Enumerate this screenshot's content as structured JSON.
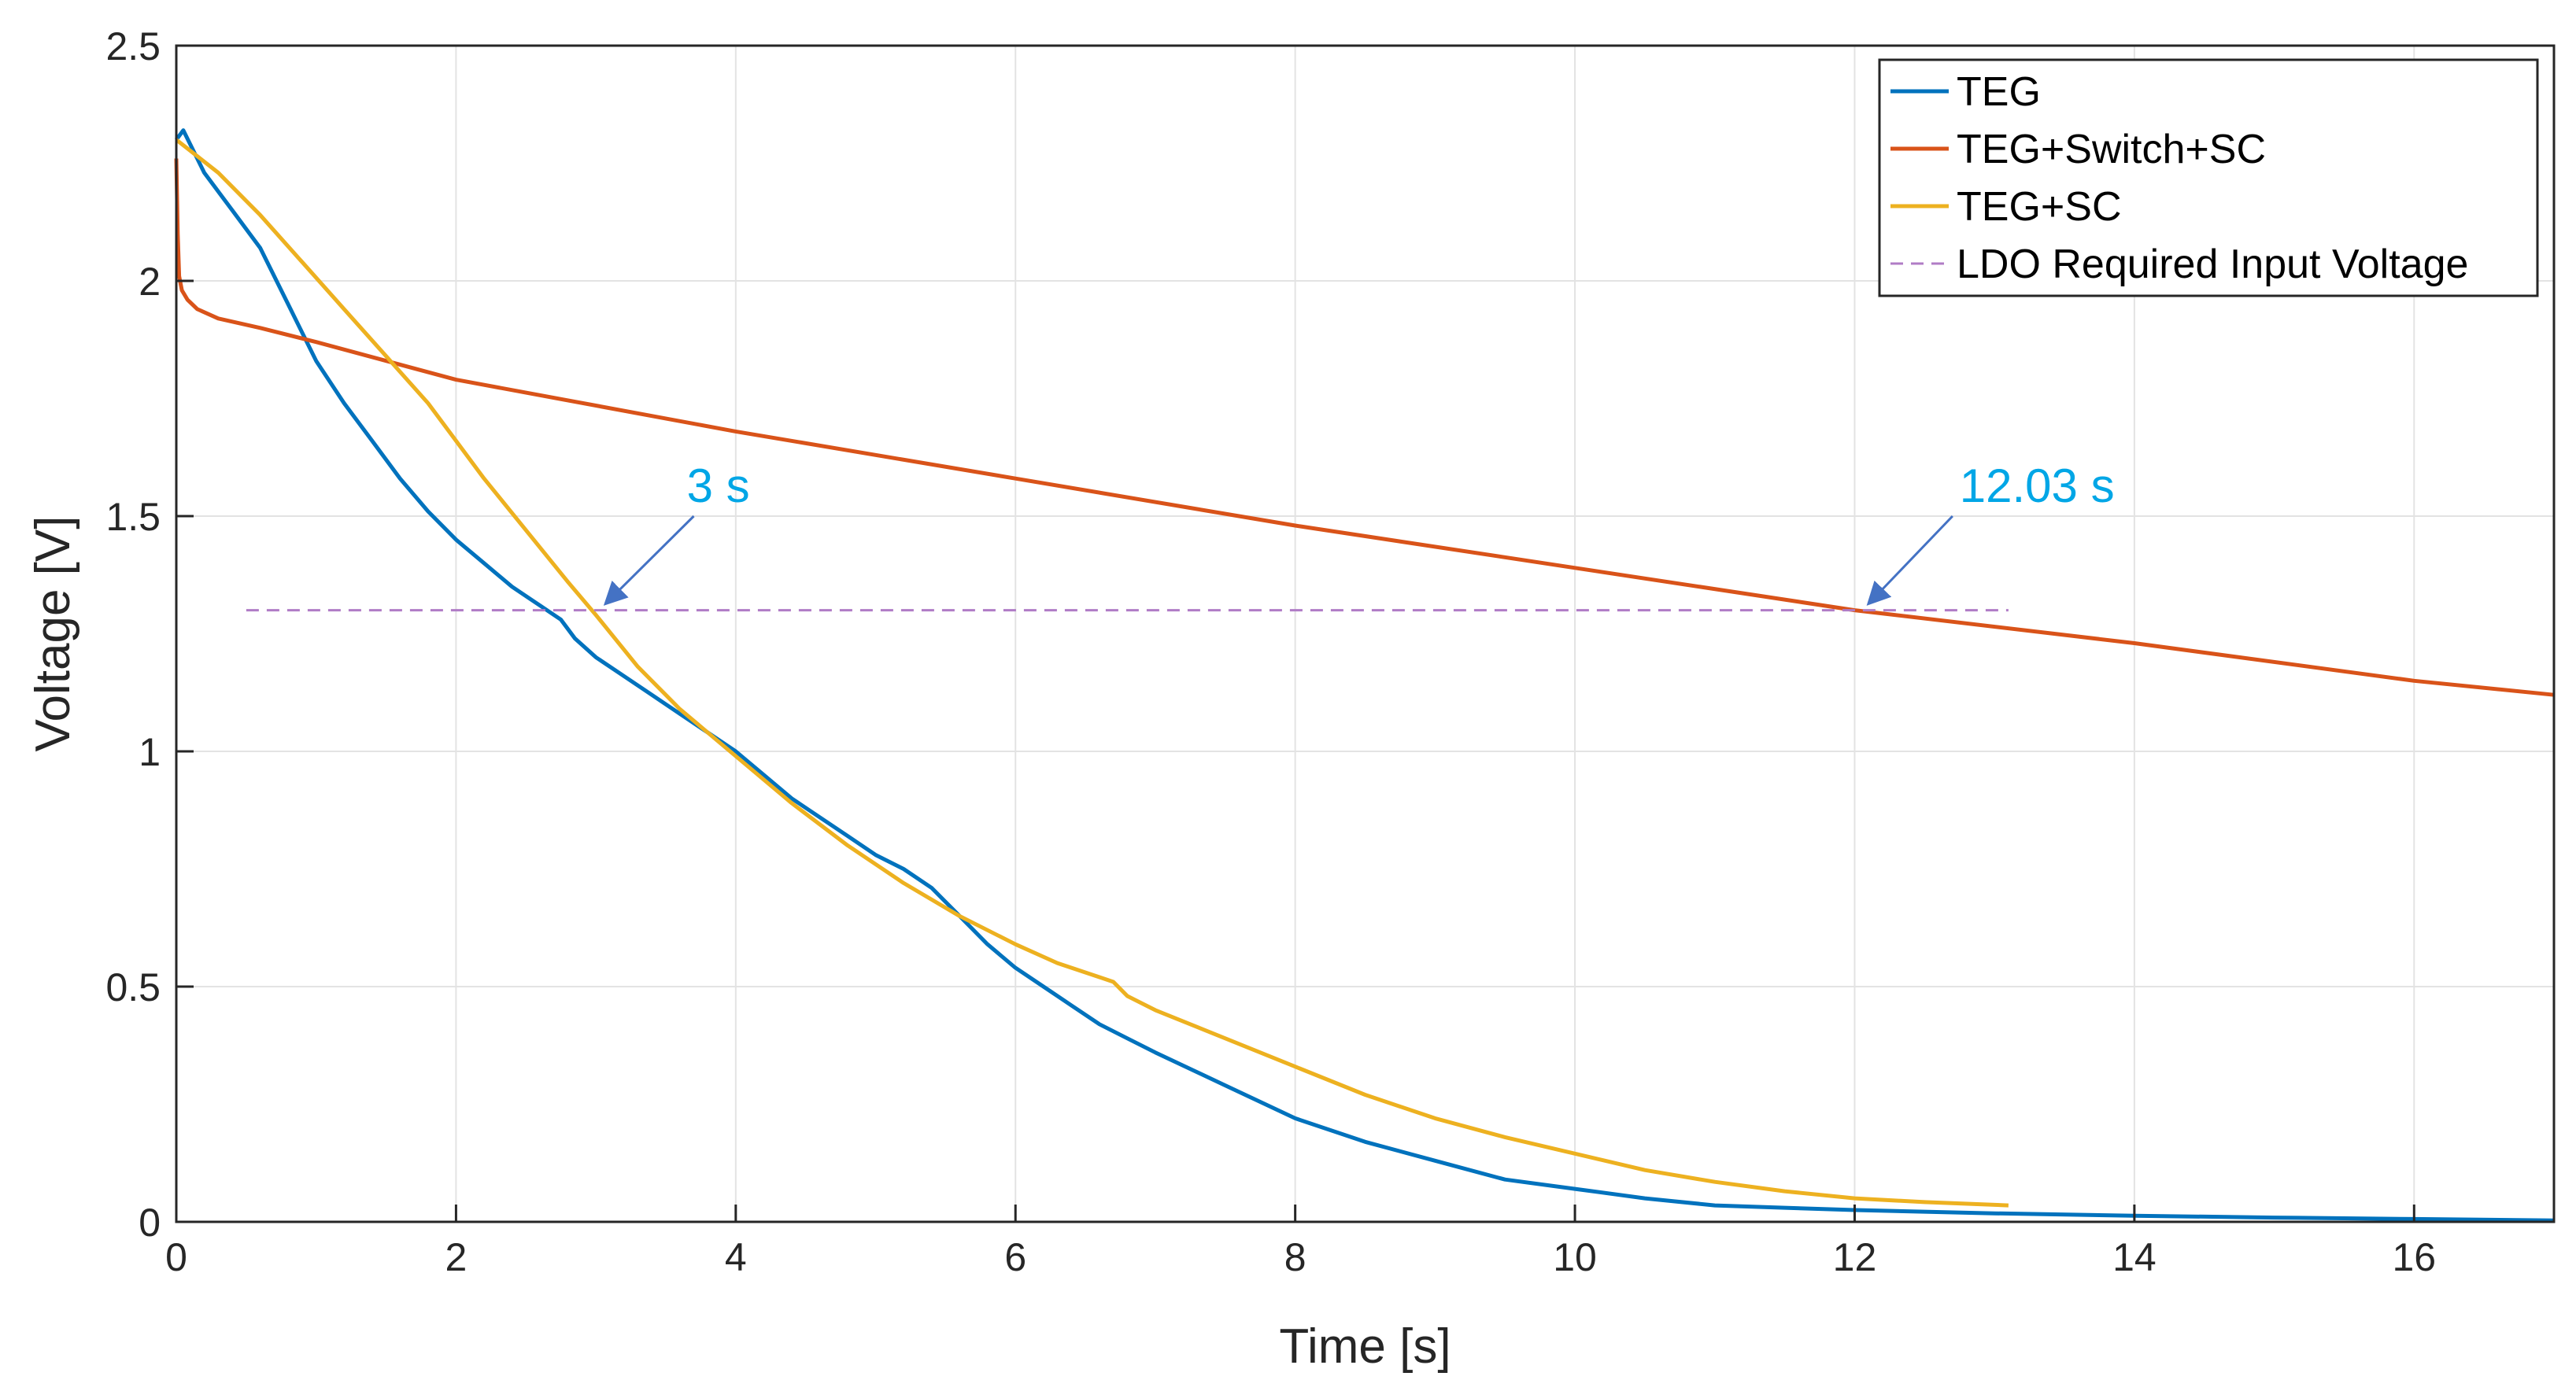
{
  "chart_data": {
    "type": "line",
    "title": "",
    "xlabel": "Time [s]",
    "ylabel": "Voltage [V]",
    "xlim": [
      0,
      17
    ],
    "ylim": [
      0,
      2.5
    ],
    "grid": true,
    "legend_position": "top-right",
    "x_ticks": [
      0,
      2,
      4,
      6,
      8,
      10,
      12,
      14,
      16
    ],
    "x_tick_labels": [
      "0",
      "2",
      "4",
      "6",
      "8",
      "10",
      "12",
      "14",
      "16"
    ],
    "y_ticks": [
      0,
      0.5,
      1,
      1.5,
      2,
      2.5
    ],
    "y_tick_labels": [
      "0",
      "0.5",
      "1",
      "1.5",
      "2",
      "2.5"
    ],
    "series": [
      {
        "name": "TEG",
        "color": "#0072BD",
        "dashed": false,
        "x": [
          0,
          0.05,
          0.2,
          0.4,
          0.6,
          0.8,
          1.0,
          1.2,
          1.4,
          1.6,
          1.8,
          2.0,
          2.2,
          2.4,
          2.6,
          2.75,
          2.85,
          3.0,
          3.2,
          3.4,
          3.6,
          3.8,
          4.0,
          4.2,
          4.4,
          4.6,
          4.8,
          5.0,
          5.2,
          5.4,
          5.6,
          5.8,
          6.0,
          6.2,
          6.4,
          6.6,
          6.8,
          7.0,
          7.5,
          8.0,
          8.5,
          9.0,
          9.5,
          10.0,
          10.5,
          11.0,
          11.5,
          12.0,
          13.0,
          14.0,
          15.0,
          16.0,
          17.0
        ],
        "y": [
          2.3,
          2.32,
          2.23,
          2.15,
          2.07,
          1.95,
          1.83,
          1.74,
          1.66,
          1.58,
          1.51,
          1.45,
          1.4,
          1.35,
          1.31,
          1.28,
          1.24,
          1.2,
          1.16,
          1.12,
          1.08,
          1.04,
          1.0,
          0.95,
          0.9,
          0.86,
          0.82,
          0.78,
          0.75,
          0.71,
          0.65,
          0.59,
          0.54,
          0.5,
          0.46,
          0.42,
          0.39,
          0.36,
          0.29,
          0.22,
          0.17,
          0.13,
          0.09,
          0.07,
          0.05,
          0.035,
          0.03,
          0.025,
          0.018,
          0.013,
          0.009,
          0.006,
          0.003
        ]
      },
      {
        "name": "TEG+Switch+SC",
        "color": "#D95319",
        "dashed": false,
        "x": [
          0,
          0.01,
          0.02,
          0.04,
          0.08,
          0.15,
          0.3,
          0.6,
          1.0,
          2.0,
          4.0,
          6.0,
          8.0,
          10.0,
          12.0,
          14.0,
          16.0,
          17.0
        ],
        "y": [
          2.26,
          2.1,
          2.01,
          1.98,
          1.96,
          1.94,
          1.92,
          1.9,
          1.87,
          1.79,
          1.68,
          1.58,
          1.48,
          1.39,
          1.3,
          1.23,
          1.15,
          1.12
        ]
      },
      {
        "name": "TEG+SC",
        "color": "#EDB120",
        "dashed": false,
        "x": [
          0,
          0.3,
          0.6,
          0.9,
          1.2,
          1.5,
          1.8,
          2.0,
          2.2,
          2.5,
          2.8,
          3.0,
          3.3,
          3.6,
          4.0,
          4.4,
          4.8,
          5.2,
          5.6,
          6.0,
          6.3,
          6.6,
          6.7,
          6.8,
          7.0,
          7.5,
          8.0,
          8.5,
          9.0,
          9.5,
          10.0,
          10.5,
          11.0,
          11.5,
          12.0,
          12.5,
          13.1
        ],
        "y": [
          2.3,
          2.23,
          2.14,
          2.04,
          1.94,
          1.84,
          1.74,
          1.66,
          1.58,
          1.47,
          1.36,
          1.29,
          1.18,
          1.09,
          0.99,
          0.89,
          0.8,
          0.72,
          0.65,
          0.59,
          0.55,
          0.52,
          0.51,
          0.48,
          0.45,
          0.39,
          0.33,
          0.27,
          0.22,
          0.18,
          0.145,
          0.11,
          0.085,
          0.065,
          0.05,
          0.042,
          0.035
        ]
      },
      {
        "name": "LDO Required Input Voltage",
        "color": "#B07CC6",
        "dashed": true,
        "x": [
          0.5,
          13.1
        ],
        "y": [
          1.3,
          1.3
        ]
      }
    ],
    "annotations": [
      {
        "text": "3 s",
        "color": "#00A6E6",
        "arrow_to": [
          3.0,
          1.3
        ],
        "arrow_from": [
          3.7,
          1.5
        ],
        "text_at": [
          3.65,
          1.53
        ]
      },
      {
        "text": "12.03 s",
        "color": "#00A6E6",
        "arrow_to": [
          12.03,
          1.3
        ],
        "arrow_from": [
          12.7,
          1.5
        ],
        "text_at": [
          12.75,
          1.53
        ]
      }
    ]
  }
}
